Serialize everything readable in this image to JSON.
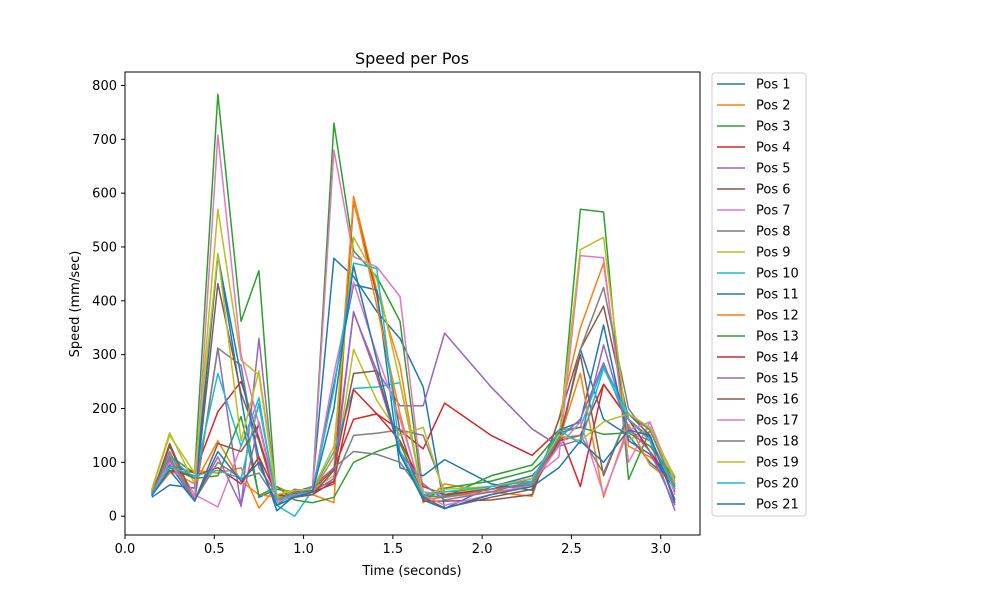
{
  "chart_data": {
    "type": "line",
    "title": "Speed per Pos",
    "xlabel": "Time (seconds)",
    "ylabel": "Speed (mm/sec)",
    "xlim": [
      0.0,
      3.22
    ],
    "ylim": [
      -35,
      825
    ],
    "xticks": [
      "0.0",
      "0.5",
      "1.0",
      "1.5",
      "2.0",
      "2.5",
      "3.0"
    ],
    "xtick_values": [
      0.0,
      0.5,
      1.0,
      1.5,
      2.0,
      2.5,
      3.0
    ],
    "yticks": [
      "0",
      "100",
      "200",
      "300",
      "400",
      "500",
      "600",
      "700",
      "800"
    ],
    "ytick_values": [
      0,
      100,
      200,
      300,
      400,
      500,
      600,
      700,
      800
    ],
    "grid": false,
    "legend_position": "outside-right-top",
    "x": [
      0.15,
      0.25,
      0.39,
      0.52,
      0.65,
      0.75,
      0.85,
      0.95,
      1.05,
      1.17,
      1.28,
      1.41,
      1.54,
      1.67,
      1.79,
      2.05,
      2.28,
      2.43,
      2.55,
      2.68,
      2.82,
      2.94,
      3.08
    ],
    "series": [
      {
        "name": "Pos 1",
        "color": "#1f77b4",
        "values": [
          35,
          58,
          52,
          487,
          220,
          35,
          50,
          45,
          55,
          479,
          445,
          380,
          330,
          240,
          14,
          55,
          75,
          130,
          310,
          180,
          150,
          100,
          60
        ]
      },
      {
        "name": "Pos 2",
        "color": "#ff7f0e",
        "values": [
          40,
          80,
          85,
          80,
          90,
          15,
          55,
          40,
          40,
          25,
          594,
          420,
          280,
          25,
          60,
          45,
          37,
          180,
          350,
          470,
          130,
          110,
          65
        ]
      },
      {
        "name": "Pos 3",
        "color": "#2ca02c",
        "values": [
          50,
          112,
          80,
          784,
          362,
          456,
          20,
          45,
          50,
          730,
          493,
          445,
          362,
          30,
          52,
          65,
          85,
          130,
          570,
          565,
          68,
          160,
          72
        ]
      },
      {
        "name": "Pos 4",
        "color": "#d62728",
        "values": [
          48,
          95,
          80,
          194,
          250,
          145,
          35,
          42,
          48,
          88,
          180,
          190,
          160,
          125,
          210,
          150,
          113,
          160,
          55,
          245,
          180,
          120,
          55
        ]
      },
      {
        "name": "Pos 5",
        "color": "#9467bd",
        "values": [
          44,
          105,
          30,
          312,
          18,
          330,
          25,
          38,
          55,
          90,
          378,
          270,
          205,
          205,
          340,
          240,
          162,
          130,
          142,
          318,
          158,
          140,
          10
        ]
      },
      {
        "name": "Pos 6",
        "color": "#8c564b",
        "values": [
          40,
          130,
          30,
          432,
          228,
          140,
          30,
          50,
          45,
          60,
          585,
          410,
          158,
          28,
          28,
          30,
          40,
          180,
          310,
          390,
          180,
          145,
          45
        ]
      },
      {
        "name": "Pos 7",
        "color": "#e377c2",
        "values": [
          42,
          115,
          40,
          17,
          130,
          205,
          30,
          45,
          50,
          680,
          482,
          463,
          408,
          45,
          40,
          55,
          70,
          110,
          484,
          480,
          100,
          175,
          60
        ]
      },
      {
        "name": "Pos 8",
        "color": "#7f7f7f",
        "values": [
          45,
          120,
          30,
          312,
          280,
          90,
          40,
          45,
          50,
          65,
          150,
          154,
          160,
          150,
          45,
          50,
          60,
          135,
          310,
          425,
          200,
          145,
          50
        ]
      },
      {
        "name": "Pos 9",
        "color": "#bcbd22",
        "values": [
          50,
          155,
          60,
          570,
          290,
          262,
          35,
          48,
          50,
          75,
          310,
          215,
          150,
          165,
          40,
          55,
          65,
          145,
          495,
          518,
          140,
          165,
          70
        ]
      },
      {
        "name": "Pos 10",
        "color": "#17becf",
        "values": [
          38,
          110,
          70,
          265,
          130,
          220,
          20,
          0,
          48,
          120,
          237,
          240,
          248,
          35,
          38,
          50,
          62,
          160,
          165,
          280,
          190,
          160,
          55
        ]
      },
      {
        "name": "Pos 11",
        "color": "#1f77b4",
        "values": [
          40,
          95,
          30,
          483,
          260,
          108,
          10,
          38,
          48,
          245,
          430,
          420,
          90,
          75,
          105,
          60,
          48,
          160,
          175,
          355,
          140,
          115,
          50
        ]
      },
      {
        "name": "Pos 12",
        "color": "#ff7f0e",
        "values": [
          42,
          85,
          60,
          140,
          65,
          40,
          35,
          40,
          45,
          110,
          590,
          390,
          190,
          30,
          35,
          45,
          55,
          140,
          265,
          35,
          170,
          95,
          60
        ]
      },
      {
        "name": "Pos 13",
        "color": "#2ca02c",
        "values": [
          45,
          90,
          70,
          75,
          185,
          38,
          55,
          30,
          25,
          35,
          100,
          120,
          135,
          38,
          35,
          75,
          95,
          155,
          165,
          152,
          155,
          130,
          70
        ]
      },
      {
        "name": "Pos 14",
        "color": "#d62728",
        "values": [
          42,
          85,
          75,
          90,
          60,
          110,
          40,
          35,
          40,
          65,
          235,
          190,
          140,
          55,
          40,
          50,
          70,
          140,
          150,
          245,
          180,
          120,
          55
        ]
      },
      {
        "name": "Pos 15",
        "color": "#9467bd",
        "values": [
          40,
          100,
          30,
          110,
          20,
          175,
          30,
          38,
          45,
          70,
          380,
          260,
          120,
          60,
          30,
          45,
          65,
          145,
          180,
          285,
          165,
          120,
          20
        ]
      },
      {
        "name": "Pos 16",
        "color": "#8c564b",
        "values": [
          38,
          135,
          28,
          135,
          120,
          170,
          30,
          35,
          40,
          85,
          265,
          270,
          120,
          35,
          15,
          35,
          50,
          140,
          300,
          75,
          190,
          150,
          30
        ]
      },
      {
        "name": "Pos 17",
        "color": "#e377c2",
        "values": [
          40,
          100,
          35,
          708,
          300,
          170,
          25,
          40,
          45,
          265,
          435,
          300,
          180,
          40,
          20,
          40,
          60,
          130,
          175,
          40,
          160,
          175,
          40
        ]
      },
      {
        "name": "Pos 18",
        "color": "#7f7f7f",
        "values": [
          45,
          110,
          30,
          100,
          70,
          80,
          30,
          45,
          50,
          90,
          120,
          115,
          100,
          40,
          35,
          50,
          58,
          145,
          150,
          80,
          190,
          160,
          50
        ]
      },
      {
        "name": "Pos 19",
        "color": "#bcbd22",
        "values": [
          48,
          150,
          80,
          488,
          140,
          270,
          40,
          48,
          50,
          130,
          518,
          440,
          250,
          40,
          50,
          55,
          70,
          150,
          140,
          175,
          190,
          165,
          65
        ]
      },
      {
        "name": "Pos 20",
        "color": "#17becf",
        "values": [
          40,
          92,
          75,
          85,
          70,
          210,
          30,
          40,
          45,
          235,
          470,
          460,
          120,
          40,
          45,
          55,
          65,
          160,
          135,
          275,
          180,
          140,
          50
        ]
      },
      {
        "name": "Pos 21",
        "color": "#1f77b4",
        "values": [
          38,
          85,
          28,
          120,
          65,
          100,
          20,
          35,
          45,
          200,
          465,
          290,
          115,
          30,
          14,
          40,
          55,
          90,
          140,
          100,
          160,
          150,
          25
        ]
      }
    ]
  }
}
